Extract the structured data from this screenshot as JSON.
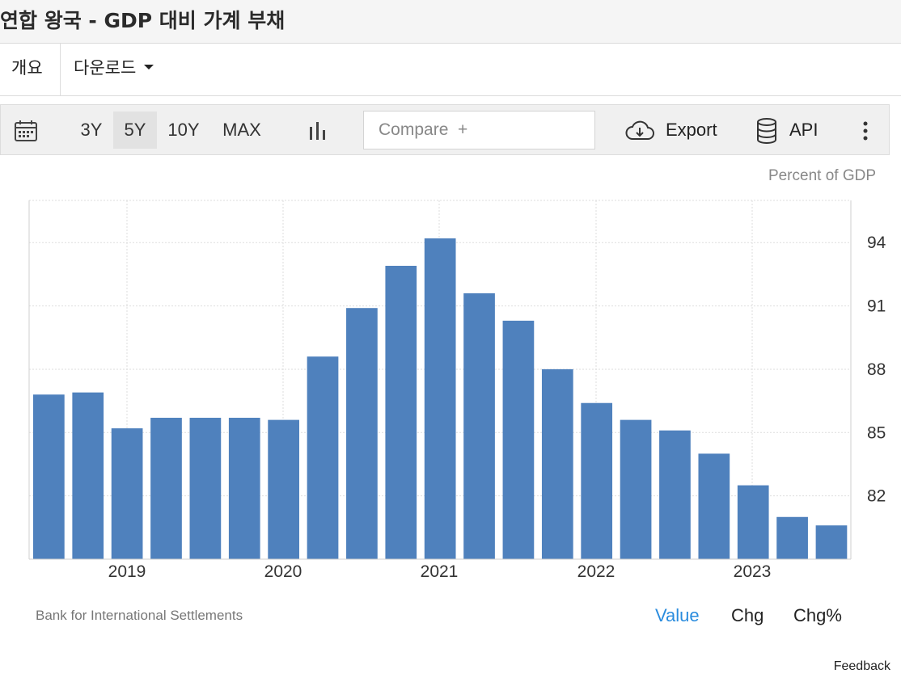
{
  "page": {
    "title": "연합 왕국 - GDP 대비 가계 부채"
  },
  "tabs": [
    {
      "label": "개요"
    },
    {
      "label": "다운로드"
    }
  ],
  "toolbar": {
    "ranges": [
      "3Y",
      "5Y",
      "10Y",
      "MAX"
    ],
    "active_range": "5Y",
    "compare_placeholder": "Compare  +",
    "export_label": "Export",
    "api_label": "API",
    "icons": [
      "calendar-icon",
      "bar-chart-icon",
      "cloud-download-icon",
      "database-icon",
      "more-vertical-icon"
    ]
  },
  "chart_data": {
    "type": "bar",
    "unit_label": "Percent of GDP",
    "series": [
      {
        "values": [
          86.8,
          86.9,
          85.2,
          85.7,
          85.7,
          85.7,
          85.6,
          88.6,
          90.9,
          92.9,
          94.2,
          91.6,
          90.3,
          88.0,
          86.4,
          85.6,
          85.1,
          84.0,
          82.5,
          81.0,
          80.6
        ]
      }
    ],
    "x_tick_labels": [
      "2019",
      "2020",
      "2021",
      "2022",
      "2023"
    ],
    "y_ticks": [
      82,
      85,
      88,
      91,
      94
    ],
    "ylim": [
      79.0,
      96.0
    ],
    "y_axis_side": "right",
    "grid": true,
    "bar_color": "#4f81bd"
  },
  "footer": {
    "source": "Bank for International Settlements",
    "modes": [
      "Value",
      "Chg",
      "Chg%"
    ],
    "active_mode": "Value",
    "feedback": "Feedback"
  },
  "colors": {
    "accent": "#2a8cde",
    "bar": "#4f81bd",
    "toolbar_bg": "#f0f0f0"
  }
}
